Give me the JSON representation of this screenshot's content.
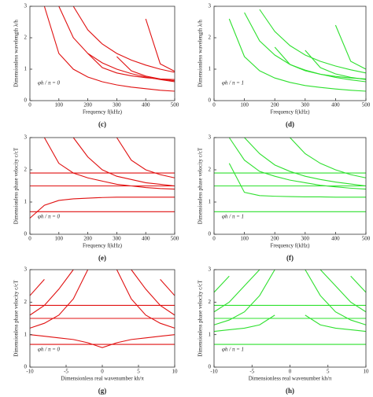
{
  "chart_data": [
    {
      "type": "line",
      "panel_label": "(c)",
      "x_label": "Frequency  f(kHz)",
      "y_label": "Dimensionless wavelength  λ/h",
      "annotation": "φh / π = 0",
      "x": [
        0,
        50,
        100,
        150,
        200,
        250,
        300,
        350,
        400,
        450,
        500
      ],
      "xlim": [
        0,
        500
      ],
      "ylim": [
        0,
        3
      ],
      "xticks": [
        0,
        100,
        200,
        300,
        400,
        500
      ],
      "yticks": [
        0,
        1,
        2,
        3
      ],
      "series": [
        {
          "color": "#e01010",
          "values": [
            null,
            3,
            1.5,
            1,
            0.75,
            0.6,
            0.5,
            0.43,
            0.38,
            0.33,
            0.3
          ]
        },
        {
          "color": "#e01010",
          "values": [
            null,
            null,
            3,
            2,
            1.5,
            1.2,
            1,
            0.86,
            0.75,
            0.67,
            0.6
          ]
        },
        {
          "color": "#e01010",
          "values": [
            null,
            null,
            null,
            3,
            2.25,
            1.8,
            1.5,
            1.29,
            1.13,
            1,
            0.9
          ]
        },
        {
          "color": "#e01010",
          "values": [
            null,
            null,
            null,
            null,
            1.5,
            1.05,
            0.88,
            0.79,
            0.73,
            0.69,
            0.67
          ]
        },
        {
          "color": "#e01010",
          "values": [
            null,
            null,
            null,
            null,
            null,
            null,
            1.4,
            0.95,
            0.78,
            0.69,
            0.63
          ]
        },
        {
          "color": "#e01010",
          "values": [
            null,
            null,
            null,
            null,
            null,
            null,
            null,
            null,
            2.6,
            1.17,
            0.93
          ]
        }
      ]
    },
    {
      "type": "line",
      "panel_label": "(d)",
      "x_label": "Frequency  f(kHz)",
      "y_label": "Dimensionless wavelength  λ/h",
      "annotation": "φh / π = 1",
      "x": [
        0,
        50,
        100,
        150,
        200,
        250,
        300,
        350,
        400,
        450,
        500
      ],
      "xlim": [
        0,
        500
      ],
      "ylim": [
        0,
        3
      ],
      "xticks": [
        0,
        100,
        200,
        300,
        400,
        500
      ],
      "yticks": [
        0,
        1,
        2,
        3
      ],
      "series": [
        {
          "color": "#2ee02e",
          "values": [
            null,
            2.6,
            1.4,
            0.95,
            0.72,
            0.58,
            0.48,
            0.42,
            0.37,
            0.33,
            0.3
          ]
        },
        {
          "color": "#2ee02e",
          "values": [
            null,
            null,
            2.8,
            1.9,
            1.45,
            1.15,
            0.97,
            0.84,
            0.74,
            0.66,
            0.6
          ]
        },
        {
          "color": "#2ee02e",
          "values": [
            null,
            null,
            null,
            2.9,
            2.2,
            1.75,
            1.45,
            1.25,
            1.1,
            0.98,
            0.88
          ]
        },
        {
          "color": "#2ee02e",
          "values": [
            null,
            null,
            null,
            null,
            1.7,
            1.15,
            0.95,
            0.84,
            0.77,
            0.72,
            0.69
          ]
        },
        {
          "color": "#2ee02e",
          "values": [
            null,
            null,
            null,
            null,
            null,
            null,
            1.6,
            1.05,
            0.85,
            0.74,
            0.67
          ]
        },
        {
          "color": "#2ee02e",
          "values": [
            null,
            null,
            null,
            null,
            null,
            null,
            null,
            null,
            2.4,
            1.25,
            1
          ]
        }
      ]
    },
    {
      "type": "line",
      "panel_label": "(e)",
      "x_label": "Frequency  f(kHz)",
      "y_label": "Dimensionless phase velocity  c/cT",
      "annotation": "φh / π = 0",
      "x": [
        0,
        50,
        100,
        150,
        200,
        250,
        300,
        350,
        400,
        450,
        500
      ],
      "xlim": [
        0,
        500
      ],
      "ylim": [
        0,
        3
      ],
      "xticks": [
        0,
        100,
        200,
        300,
        400,
        500
      ],
      "yticks": [
        0,
        1,
        2,
        3
      ],
      "series": [
        {
          "color": "#e01010",
          "values": [
            0.7,
            0.7,
            0.7,
            0.7,
            0.7,
            0.7,
            0.7,
            0.7,
            0.7,
            0.7,
            0.7
          ]
        },
        {
          "color": "#e01010",
          "values": [
            1.5,
            1.5,
            1.5,
            1.5,
            1.5,
            1.5,
            1.5,
            1.5,
            1.5,
            1.5,
            1.5
          ]
        },
        {
          "color": "#e01010",
          "values": [
            1.9,
            1.9,
            1.9,
            1.9,
            1.9,
            1.9,
            1.9,
            1.9,
            1.9,
            1.9,
            1.9
          ]
        },
        {
          "color": "#e01010",
          "values": [
            0.5,
            0.9,
            1.05,
            1.1,
            1.12,
            1.14,
            1.15,
            1.15,
            1.15,
            1.15,
            1.15
          ]
        },
        {
          "color": "#e01010",
          "values": [
            null,
            3,
            2.2,
            1.9,
            1.75,
            1.65,
            1.55,
            1.5,
            1.45,
            1.42,
            1.4
          ]
        },
        {
          "color": "#e01010",
          "values": [
            null,
            null,
            null,
            3,
            2.4,
            2,
            1.8,
            1.7,
            1.6,
            1.55,
            1.5
          ]
        },
        {
          "color": "#e01010",
          "values": [
            null,
            null,
            null,
            null,
            null,
            null,
            3,
            2.3,
            2,
            1.85,
            1.75
          ]
        }
      ]
    },
    {
      "type": "line",
      "panel_label": "(f)",
      "x_label": "Frequency  f(kHz)",
      "y_label": "Dimensionless phase velocity  c/cT",
      "annotation": "φh / π = 1",
      "x": [
        0,
        50,
        100,
        150,
        200,
        250,
        300,
        350,
        400,
        450,
        500
      ],
      "xlim": [
        0,
        500
      ],
      "ylim": [
        0,
        3
      ],
      "xticks": [
        0,
        100,
        200,
        300,
        400,
        500
      ],
      "yticks": [
        0,
        1,
        2,
        3
      ],
      "series": [
        {
          "color": "#2ee02e",
          "values": [
            0.7,
            0.7,
            0.7,
            0.7,
            0.7,
            0.7,
            0.7,
            0.7,
            0.7,
            0.7,
            0.7
          ]
        },
        {
          "color": "#2ee02e",
          "values": [
            1.5,
            1.5,
            1.5,
            1.5,
            1.5,
            1.5,
            1.5,
            1.5,
            1.5,
            1.5,
            1.5
          ]
        },
        {
          "color": "#2ee02e",
          "values": [
            1.9,
            1.9,
            1.9,
            1.9,
            1.9,
            1.9,
            1.9,
            1.9,
            1.9,
            1.9,
            1.9
          ]
        },
        {
          "color": "#2ee02e",
          "values": [
            null,
            2.2,
            1.3,
            1.2,
            1.18,
            1.17,
            1.16,
            1.16,
            1.15,
            1.15,
            1.15
          ]
        },
        {
          "color": "#2ee02e",
          "values": [
            null,
            3,
            2.3,
            1.95,
            1.8,
            1.68,
            1.6,
            1.52,
            1.47,
            1.43,
            1.4
          ]
        },
        {
          "color": "#2ee02e",
          "values": [
            null,
            null,
            3,
            2.5,
            2.15,
            1.95,
            1.8,
            1.7,
            1.62,
            1.56,
            1.5
          ]
        },
        {
          "color": "#2ee02e",
          "values": [
            null,
            null,
            null,
            null,
            null,
            3,
            2.5,
            2.2,
            2,
            1.85,
            1.75
          ]
        }
      ]
    },
    {
      "type": "line",
      "panel_label": "(g)",
      "x_label": "Dimensionless real wavenumber  kh/π",
      "y_label": "Dimensionless phase velocity  c/cT",
      "annotation": "φh / π = 0",
      "x": [
        -10,
        -8,
        -6,
        -4,
        -2,
        0,
        2,
        4,
        6,
        8,
        10
      ],
      "xlim": [
        -10,
        10
      ],
      "ylim": [
        0,
        3
      ],
      "xticks": [
        -10,
        -5,
        0,
        5,
        10
      ],
      "yticks": [
        0,
        1,
        2,
        3
      ],
      "series": [
        {
          "color": "#e01010",
          "values": [
            0.7,
            0.7,
            0.7,
            0.7,
            0.7,
            0.7,
            0.7,
            0.7,
            0.7,
            0.7,
            0.7
          ]
        },
        {
          "color": "#e01010",
          "values": [
            1.5,
            1.5,
            1.5,
            1.5,
            1.5,
            1.5,
            1.5,
            1.5,
            1.5,
            1.5,
            1.5
          ]
        },
        {
          "color": "#e01010",
          "values": [
            1.9,
            1.9,
            1.9,
            1.9,
            1.9,
            1.9,
            1.9,
            1.9,
            1.9,
            1.9,
            1.9
          ]
        },
        {
          "color": "#e01010",
          "values": [
            1,
            0.95,
            0.9,
            0.85,
            0.75,
            0.6,
            0.75,
            0.85,
            0.9,
            0.95,
            1
          ]
        },
        {
          "color": "#e01010",
          "values": [
            1.2,
            1.35,
            1.6,
            2.1,
            3,
            null,
            3,
            2.1,
            1.6,
            1.35,
            1.2
          ]
        },
        {
          "color": "#e01010",
          "values": [
            1.6,
            1.9,
            2.4,
            3,
            null,
            null,
            null,
            3,
            2.4,
            1.9,
            1.6
          ]
        },
        {
          "color": "#e01010",
          "values": [
            2.2,
            2.7,
            null,
            null,
            null,
            null,
            null,
            null,
            null,
            2.7,
            2.2
          ]
        }
      ]
    },
    {
      "type": "line",
      "panel_label": "(h)",
      "x_label": "Dimensionless real wavenumber  kh/π",
      "y_label": "Dimensionless phase velocity  c/cT",
      "annotation": "φh / π = 1",
      "x": [
        -10,
        -8,
        -6,
        -4,
        -2,
        0,
        2,
        4,
        6,
        8,
        10
      ],
      "xlim": [
        -10,
        10
      ],
      "ylim": [
        0,
        3
      ],
      "xticks": [
        -10,
        -5,
        0,
        5,
        10
      ],
      "yticks": [
        0,
        1,
        2,
        3
      ],
      "series": [
        {
          "color": "#2ee02e",
          "values": [
            0.7,
            0.7,
            0.7,
            0.7,
            0.7,
            0.7,
            0.7,
            0.7,
            0.7,
            0.7,
            0.7
          ]
        },
        {
          "color": "#2ee02e",
          "values": [
            1.5,
            1.5,
            1.5,
            1.5,
            1.5,
            1.5,
            1.5,
            1.5,
            1.5,
            1.5,
            1.5
          ]
        },
        {
          "color": "#2ee02e",
          "values": [
            1.9,
            1.9,
            1.9,
            1.9,
            1.9,
            1.9,
            1.9,
            1.9,
            1.9,
            1.9,
            1.9
          ]
        },
        {
          "color": "#2ee02e",
          "values": [
            1.1,
            1.15,
            1.2,
            1.3,
            1.6,
            null,
            1.6,
            1.3,
            1.2,
            1.15,
            1.1
          ]
        },
        {
          "color": "#2ee02e",
          "values": [
            1.3,
            1.45,
            1.7,
            2.2,
            3,
            null,
            3,
            2.2,
            1.7,
            1.45,
            1.3
          ]
        },
        {
          "color": "#2ee02e",
          "values": [
            1.7,
            2,
            2.5,
            3,
            null,
            null,
            null,
            3,
            2.5,
            2,
            1.7
          ]
        },
        {
          "color": "#2ee02e",
          "values": [
            2.3,
            2.8,
            null,
            null,
            null,
            null,
            null,
            null,
            null,
            2.8,
            2.3
          ]
        }
      ]
    }
  ]
}
